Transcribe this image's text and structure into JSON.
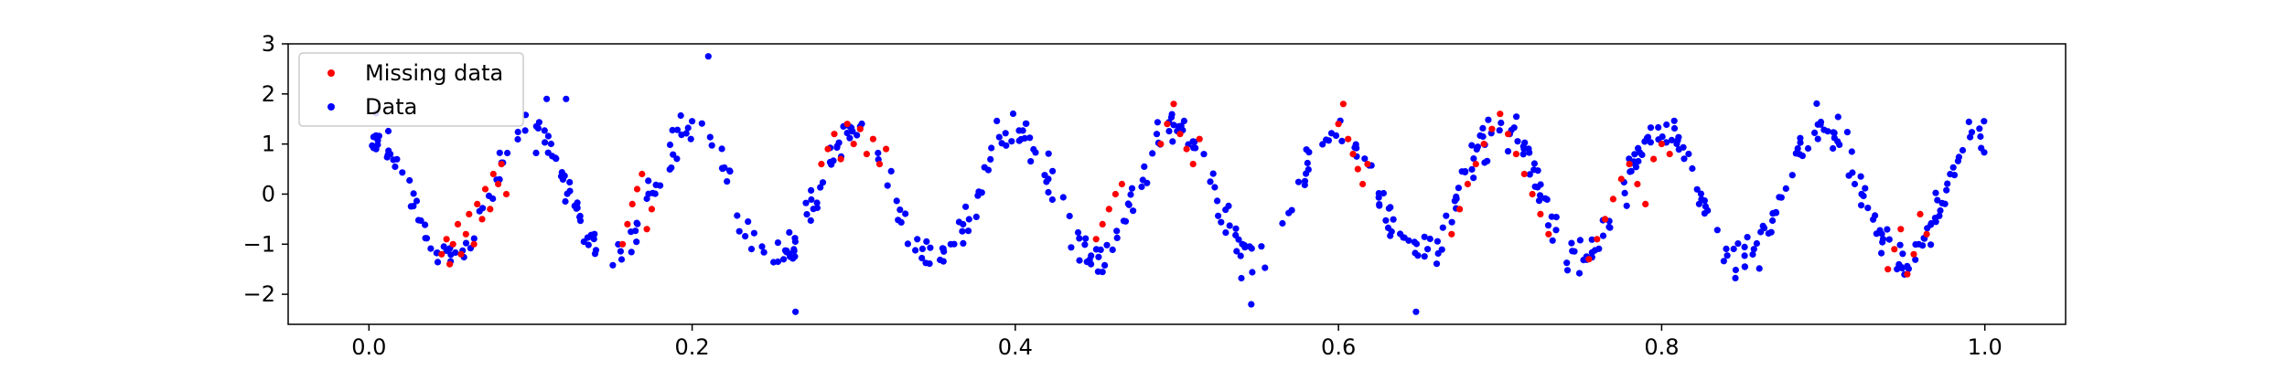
{
  "chart_data": {
    "type": "scatter",
    "title": "",
    "xlabel": "",
    "ylabel": "",
    "xlim": [
      -0.05,
      1.05
    ],
    "ylim": [
      -2.6,
      3.0
    ],
    "xticks": [
      {
        "value": 0.0,
        "label": "0.0"
      },
      {
        "value": 0.2,
        "label": "0.2"
      },
      {
        "value": 0.4,
        "label": "0.4"
      },
      {
        "value": 0.6,
        "label": "0.6"
      },
      {
        "value": 0.8,
        "label": "0.8"
      },
      {
        "value": 1.0,
        "label": "1.0"
      }
    ],
    "yticks": [
      {
        "value": -2,
        "label": "−2"
      },
      {
        "value": -1,
        "label": "−1"
      },
      {
        "value": 0,
        "label": "0"
      },
      {
        "value": 1,
        "label": "1"
      },
      {
        "value": 2,
        "label": "2"
      },
      {
        "value": 3,
        "label": "3"
      }
    ],
    "grid": false,
    "legend_position": "top-left",
    "series": [
      {
        "name": "Missing data",
        "color": "#ff0000",
        "x": [
          0.045,
          0.048,
          0.05,
          0.052,
          0.055,
          0.057,
          0.06,
          0.062,
          0.065,
          0.067,
          0.07,
          0.072,
          0.075,
          0.077,
          0.08,
          0.082,
          0.085,
          0.157,
          0.16,
          0.163,
          0.166,
          0.169,
          0.172,
          0.175,
          0.28,
          0.284,
          0.288,
          0.292,
          0.296,
          0.3,
          0.304,
          0.308,
          0.312,
          0.316,
          0.32,
          0.45,
          0.454,
          0.458,
          0.462,
          0.466,
          0.49,
          0.494,
          0.498,
          0.502,
          0.506,
          0.51,
          0.514,
          0.6,
          0.603,
          0.606,
          0.609,
          0.612,
          0.615,
          0.618,
          0.67,
          0.675,
          0.68,
          0.685,
          0.69,
          0.695,
          0.7,
          0.705,
          0.71,
          0.715,
          0.72,
          0.725,
          0.73,
          0.755,
          0.76,
          0.765,
          0.77,
          0.775,
          0.78,
          0.785,
          0.79,
          0.795,
          0.8,
          0.805,
          0.94,
          0.944,
          0.948,
          0.952,
          0.956,
          0.96,
          0.964
        ],
        "y": [
          -1.2,
          -0.9,
          -1.4,
          -1.0,
          -0.6,
          -1.2,
          -0.8,
          -0.4,
          -1.0,
          -0.2,
          -0.5,
          0.1,
          -0.3,
          0.4,
          0.2,
          0.6,
          0.0,
          -1.0,
          -0.6,
          -0.2,
          0.1,
          0.4,
          -0.7,
          -0.3,
          0.6,
          0.9,
          1.2,
          0.7,
          1.4,
          1.0,
          1.3,
          0.8,
          1.1,
          0.6,
          0.9,
          -0.9,
          -0.6,
          -0.3,
          0.0,
          0.2,
          1.0,
          1.4,
          1.8,
          1.2,
          0.9,
          0.6,
          1.1,
          1.4,
          1.8,
          1.1,
          0.8,
          0.5,
          0.2,
          0.6,
          -0.8,
          -0.3,
          0.2,
          0.6,
          1.0,
          1.3,
          1.6,
          1.2,
          0.8,
          0.4,
          0.0,
          -0.4,
          -0.8,
          -1.3,
          -0.9,
          -0.5,
          -0.1,
          0.3,
          0.6,
          0.2,
          -0.2,
          0.7,
          1.0,
          0.8,
          -1.5,
          -1.1,
          -0.7,
          -1.6,
          -1.2,
          -0.4,
          -0.8
        ]
      },
      {
        "name": "Data",
        "color": "#0000ff",
        "generator": {
          "comment_free": true,
          "x_start": 0.0,
          "x_end": 1.0,
          "count": 620,
          "period": 0.1,
          "amplitude": 1.3,
          "phase_shift": 0.05,
          "noise": 0.35,
          "outliers": [
            {
              "x": 0.21,
              "y": 2.75
            },
            {
              "x": 0.264,
              "y": -2.35
            },
            {
              "x": 0.546,
              "y": -2.2
            },
            {
              "x": 0.648,
              "y": -2.35
            },
            {
              "x": 0.11,
              "y": 1.9
            },
            {
              "x": 0.122,
              "y": 1.9
            }
          ]
        }
      }
    ]
  }
}
